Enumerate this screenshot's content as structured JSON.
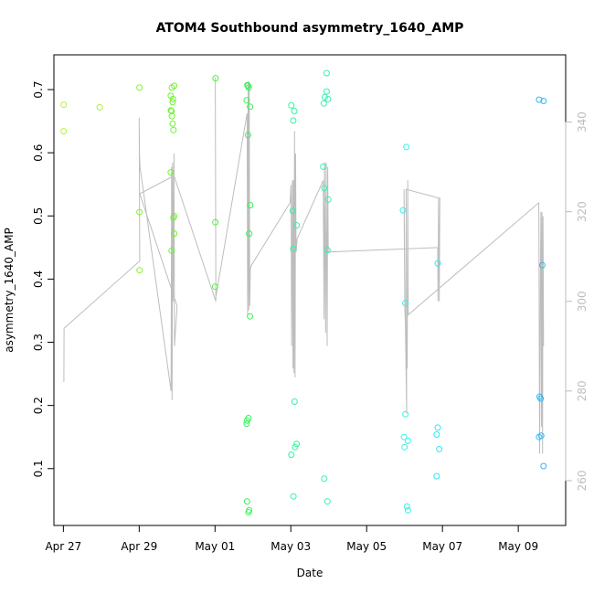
{
  "chart_data": {
    "type": "scatter",
    "title": "ATOM4 Southbound asymmetry_1640_AMP",
    "xlabel": "Date",
    "ylabel": "asymmetry_1640_AMP",
    "xlim": [
      "2023-04-26T18:00",
      "2023-05-10T06:00"
    ],
    "ylim": [
      0.01,
      0.755
    ],
    "y2lim": [
      250,
      355
    ],
    "x_ticks": [
      {
        "date": "2023-04-27",
        "label": "Apr 27"
      },
      {
        "date": "2023-04-29",
        "label": "Apr 29"
      },
      {
        "date": "2023-05-01",
        "label": "May 01"
      },
      {
        "date": "2023-05-03",
        "label": "May 03"
      },
      {
        "date": "2023-05-05",
        "label": "May 05"
      },
      {
        "date": "2023-05-07",
        "label": "May 07"
      },
      {
        "date": "2023-05-09",
        "label": "May 09"
      }
    ],
    "y_ticks": [
      "0.1",
      "0.2",
      "0.3",
      "0.4",
      "0.5",
      "0.6",
      "0.7"
    ],
    "y2_ticks": [
      "260",
      "280",
      "300",
      "320",
      "340"
    ],
    "grid": false,
    "marker": "open-circle",
    "color_scale": "hue by date: yellow-green to blue",
    "colors": {
      "line": "#bdbdbd",
      "box": "#000000",
      "right_axis": "#bdbdbd"
    },
    "points": [
      {
        "x": "2023-04-27T00:12",
        "y": 0.676,
        "color": "#b5f236"
      },
      {
        "x": "2023-04-27T00:12",
        "y": 0.634,
        "color": "#b5f236"
      },
      {
        "x": "2023-04-27T23:00",
        "y": 0.672,
        "color": "#a8f236"
      },
      {
        "x": "2023-04-29T00:10",
        "y": 0.703,
        "color": "#86f233"
      },
      {
        "x": "2023-04-29T00:10",
        "y": 0.506,
        "color": "#86f233"
      },
      {
        "x": "2023-04-29T00:12",
        "y": 0.414,
        "color": "#86f233"
      },
      {
        "x": "2023-04-29T20:00",
        "y": 0.69,
        "color": "#6ef230"
      },
      {
        "x": "2023-04-29T20:40",
        "y": 0.703,
        "color": "#6ef230"
      },
      {
        "x": "2023-04-29T20:00",
        "y": 0.667,
        "color": "#6ef230"
      },
      {
        "x": "2023-04-29T20:30",
        "y": 0.666,
        "color": "#6ef230"
      },
      {
        "x": "2023-04-29T21:20",
        "y": 0.685,
        "color": "#6ef230"
      },
      {
        "x": "2023-04-29T21:10",
        "y": 0.68,
        "color": "#6ef230"
      },
      {
        "x": "2023-04-29T22:10",
        "y": 0.706,
        "color": "#6ef230"
      },
      {
        "x": "2023-04-29T20:40",
        "y": 0.658,
        "color": "#6ef230"
      },
      {
        "x": "2023-04-29T21:10",
        "y": 0.646,
        "color": "#6ef230"
      },
      {
        "x": "2023-04-29T21:40",
        "y": 0.636,
        "color": "#6ef230"
      },
      {
        "x": "2023-04-29T20:00",
        "y": 0.569,
        "color": "#6ef230"
      },
      {
        "x": "2023-04-29T22:00",
        "y": 0.5,
        "color": "#6ef230"
      },
      {
        "x": "2023-04-29T21:40",
        "y": 0.497,
        "color": "#6ef230"
      },
      {
        "x": "2023-04-29T22:10",
        "y": 0.472,
        "color": "#6ef230"
      },
      {
        "x": "2023-04-29T20:30",
        "y": 0.445,
        "color": "#6ef230"
      },
      {
        "x": "2023-05-01T00:20",
        "y": 0.718,
        "color": "#4cf23a"
      },
      {
        "x": "2023-05-01T00:10",
        "y": 0.49,
        "color": "#4cf23a"
      },
      {
        "x": "2023-05-01T00:05",
        "y": 0.388,
        "color": "#4cf23a"
      },
      {
        "x": "2023-05-01T20:30",
        "y": 0.707,
        "color": "#33f257"
      },
      {
        "x": "2023-05-01T20:50",
        "y": 0.706,
        "color": "#33f257"
      },
      {
        "x": "2023-05-01T21:20",
        "y": 0.703,
        "color": "#33f257"
      },
      {
        "x": "2023-05-01T20:00",
        "y": 0.683,
        "color": "#33f257"
      },
      {
        "x": "2023-05-01T22:10",
        "y": 0.673,
        "color": "#33f257"
      },
      {
        "x": "2023-05-01T20:50",
        "y": 0.628,
        "color": "#33f257"
      },
      {
        "x": "2023-05-01T22:20",
        "y": 0.517,
        "color": "#33f257"
      },
      {
        "x": "2023-05-01T21:40",
        "y": 0.472,
        "color": "#33f257"
      },
      {
        "x": "2023-05-01T22:10",
        "y": 0.341,
        "color": "#33f257"
      },
      {
        "x": "2023-05-01T21:10",
        "y": 0.18,
        "color": "#33f257"
      },
      {
        "x": "2023-05-01T20:20",
        "y": 0.176,
        "color": "#33f257"
      },
      {
        "x": "2023-05-01T20:00",
        "y": 0.171,
        "color": "#33f257"
      },
      {
        "x": "2023-05-01T20:20",
        "y": 0.048,
        "color": "#33f257"
      },
      {
        "x": "2023-05-01T21:40",
        "y": 0.034,
        "color": "#33f257"
      },
      {
        "x": "2023-05-01T21:10",
        "y": 0.031,
        "color": "#33f257"
      },
      {
        "x": "2023-05-03T00:20",
        "y": 0.675,
        "color": "#33f2a0"
      },
      {
        "x": "2023-05-03T02:10",
        "y": 0.666,
        "color": "#33f2a0"
      },
      {
        "x": "2023-05-03T01:30",
        "y": 0.651,
        "color": "#33f2a0"
      },
      {
        "x": "2023-05-03T01:10",
        "y": 0.508,
        "color": "#33f2a0"
      },
      {
        "x": "2023-05-03T03:40",
        "y": 0.485,
        "color": "#33f2a0"
      },
      {
        "x": "2023-05-03T01:30",
        "y": 0.448,
        "color": "#33f2a0"
      },
      {
        "x": "2023-05-03T02:20",
        "y": 0.206,
        "color": "#33f2a0"
      },
      {
        "x": "2023-05-03T03:40",
        "y": 0.139,
        "color": "#33f2a0"
      },
      {
        "x": "2023-05-03T02:40",
        "y": 0.134,
        "color": "#33f2a0"
      },
      {
        "x": "2023-05-03T00:20",
        "y": 0.122,
        "color": "#33f2a0"
      },
      {
        "x": "2023-05-03T01:40",
        "y": 0.056,
        "color": "#33f2a0"
      },
      {
        "x": "2023-05-03T22:40",
        "y": 0.726,
        "color": "#33f2b0"
      },
      {
        "x": "2023-05-03T22:40",
        "y": 0.697,
        "color": "#33f2b0"
      },
      {
        "x": "2023-05-03T21:30",
        "y": 0.688,
        "color": "#33f2b0"
      },
      {
        "x": "2023-05-03T23:30",
        "y": 0.685,
        "color": "#33f2b0"
      },
      {
        "x": "2023-05-03T20:50",
        "y": 0.678,
        "color": "#33f2b0"
      },
      {
        "x": "2023-05-03T20:30",
        "y": 0.578,
        "color": "#33f2b0"
      },
      {
        "x": "2023-05-03T21:10",
        "y": 0.544,
        "color": "#33f2b0"
      },
      {
        "x": "2023-05-03T23:40",
        "y": 0.526,
        "color": "#33f2b0"
      },
      {
        "x": "2023-05-03T23:10",
        "y": 0.446,
        "color": "#33f2b0"
      },
      {
        "x": "2023-05-03T21:10",
        "y": 0.084,
        "color": "#33f2b0"
      },
      {
        "x": "2023-05-03T23:10",
        "y": 0.048,
        "color": "#33f2b0"
      },
      {
        "x": "2023-05-06T01:10",
        "y": 0.609,
        "color": "#33f2e6"
      },
      {
        "x": "2023-05-05T23:00",
        "y": 0.509,
        "color": "#33f2e6"
      },
      {
        "x": "2023-05-06T00:30",
        "y": 0.362,
        "color": "#33f2e6"
      },
      {
        "x": "2023-05-06T00:30",
        "y": 0.186,
        "color": "#33f2e6"
      },
      {
        "x": "2023-05-05T23:40",
        "y": 0.15,
        "color": "#33f2e6"
      },
      {
        "x": "2023-05-06T02:10",
        "y": 0.144,
        "color": "#33f2e6"
      },
      {
        "x": "2023-05-06T00:00",
        "y": 0.134,
        "color": "#33f2e6"
      },
      {
        "x": "2023-05-06T01:30",
        "y": 0.04,
        "color": "#33f2e6"
      },
      {
        "x": "2023-05-06T02:10",
        "y": 0.034,
        "color": "#33f2e6"
      },
      {
        "x": "2023-05-06T21:00",
        "y": 0.425,
        "color": "#33e6f2"
      },
      {
        "x": "2023-05-06T21:00",
        "y": 0.165,
        "color": "#33e6f2"
      },
      {
        "x": "2023-05-06T20:20",
        "y": 0.154,
        "color": "#33e6f2"
      },
      {
        "x": "2023-05-06T22:00",
        "y": 0.131,
        "color": "#33e6f2"
      },
      {
        "x": "2023-05-06T20:20",
        "y": 0.088,
        "color": "#33e6f2"
      },
      {
        "x": "2023-05-09T13:10",
        "y": 0.684,
        "color": "#33b8f2"
      },
      {
        "x": "2023-05-09T16:00",
        "y": 0.682,
        "color": "#33b8f2"
      },
      {
        "x": "2023-05-09T15:10",
        "y": 0.422,
        "color": "#33b8f2"
      },
      {
        "x": "2023-05-09T13:30",
        "y": 0.214,
        "color": "#33b8f2"
      },
      {
        "x": "2023-05-09T14:10",
        "y": 0.211,
        "color": "#33b8f2"
      },
      {
        "x": "2023-05-09T13:10",
        "y": 0.15,
        "color": "#33b8f2"
      },
      {
        "x": "2023-05-09T14:30",
        "y": 0.152,
        "color": "#33b8f2"
      },
      {
        "x": "2023-05-09T16:00",
        "y": 0.104,
        "color": "#33b8f2"
      }
    ],
    "line_y2": [
      [
        "2023-04-27T00:20",
        282
      ],
      [
        "2023-04-27T00:25",
        294
      ],
      [
        "2023-04-29T00:20",
        309
      ],
      [
        "2023-04-29T00:00",
        341
      ],
      [
        "2023-04-29T00:10",
        333
      ],
      [
        "2023-04-29T00:30",
        330
      ],
      [
        "2023-04-29T20:10",
        280
      ],
      [
        "2023-04-29T20:30",
        330
      ],
      [
        "2023-04-29T20:50",
        278
      ],
      [
        "2023-04-29T21:10",
        331
      ],
      [
        "2023-04-29T21:30",
        300
      ],
      [
        "2023-04-29T22:00",
        333
      ],
      [
        "2023-04-29T22:20",
        290
      ],
      [
        "2023-04-30T00:00",
        299
      ],
      [
        "2023-04-29T00:20",
        324
      ],
      [
        "2023-04-29T22:00",
        328
      ],
      [
        "2023-05-01T00:30",
        300
      ],
      [
        "2023-05-01T00:10",
        350
      ],
      [
        "2023-05-01T00:30",
        301
      ],
      [
        "2023-05-01T20:20",
        342
      ],
      [
        "2023-05-01T20:40",
        297
      ],
      [
        "2023-05-01T21:00",
        349
      ],
      [
        "2023-05-01T21:20",
        298
      ],
      [
        "2023-05-01T21:40",
        349
      ],
      [
        "2023-05-01T22:00",
        299
      ],
      [
        "2023-05-01T22:20",
        307
      ],
      [
        "2023-05-01T23:00",
        308
      ],
      [
        "2023-05-02T23:30",
        322
      ],
      [
        "2023-05-03T00:10",
        326
      ],
      [
        "2023-05-03T00:30",
        290
      ],
      [
        "2023-05-03T01:00",
        327
      ],
      [
        "2023-05-03T01:20",
        285
      ],
      [
        "2023-05-03T01:40",
        327
      ],
      [
        "2023-05-03T02:00",
        284
      ],
      [
        "2023-05-03T02:20",
        338
      ],
      [
        "2023-05-03T02:40",
        283
      ],
      [
        "2023-05-03T03:00",
        333
      ],
      [
        "2023-05-03T03:20",
        311
      ],
      [
        "2023-05-03T04:00",
        314
      ],
      [
        "2023-05-03T20:30",
        327
      ],
      [
        "2023-05-03T21:00",
        296
      ],
      [
        "2023-05-03T21:20",
        331
      ],
      [
        "2023-05-03T22:00",
        293
      ],
      [
        "2023-05-03T22:20",
        331
      ],
      [
        "2023-05-03T23:00",
        290
      ],
      [
        "2023-05-03T23:20",
        330
      ],
      [
        "2023-05-03T23:40",
        311
      ],
      [
        "2023-05-06T21:00",
        312
      ],
      [
        "2023-05-06T21:10",
        300
      ],
      [
        "2023-05-06T21:30",
        323
      ],
      [
        "2023-05-06T22:00",
        300
      ],
      [
        "2023-05-06T22:20",
        323
      ],
      [
        "2023-05-06T01:00",
        325
      ],
      [
        "2023-05-06T01:20",
        275
      ],
      [
        "2023-05-06T00:30",
        295
      ],
      [
        "2023-05-05T23:40",
        325
      ],
      [
        "2023-05-06T00:10",
        298
      ],
      [
        "2023-05-06T01:40",
        285
      ],
      [
        "2023-05-06T02:00",
        327
      ],
      [
        "2023-05-06T02:20",
        297
      ],
      [
        "2023-05-09T13:00",
        322
      ],
      [
        "2023-05-09T13:30",
        266
      ],
      [
        "2023-05-09T14:00",
        305
      ],
      [
        "2023-05-09T14:20",
        320
      ],
      [
        "2023-05-09T14:40",
        272
      ],
      [
        "2023-05-09T15:00",
        320
      ],
      [
        "2023-05-09T15:20",
        266
      ],
      [
        "2023-05-09T15:40",
        319
      ],
      [
        "2023-05-09T16:00",
        290
      ]
    ]
  }
}
